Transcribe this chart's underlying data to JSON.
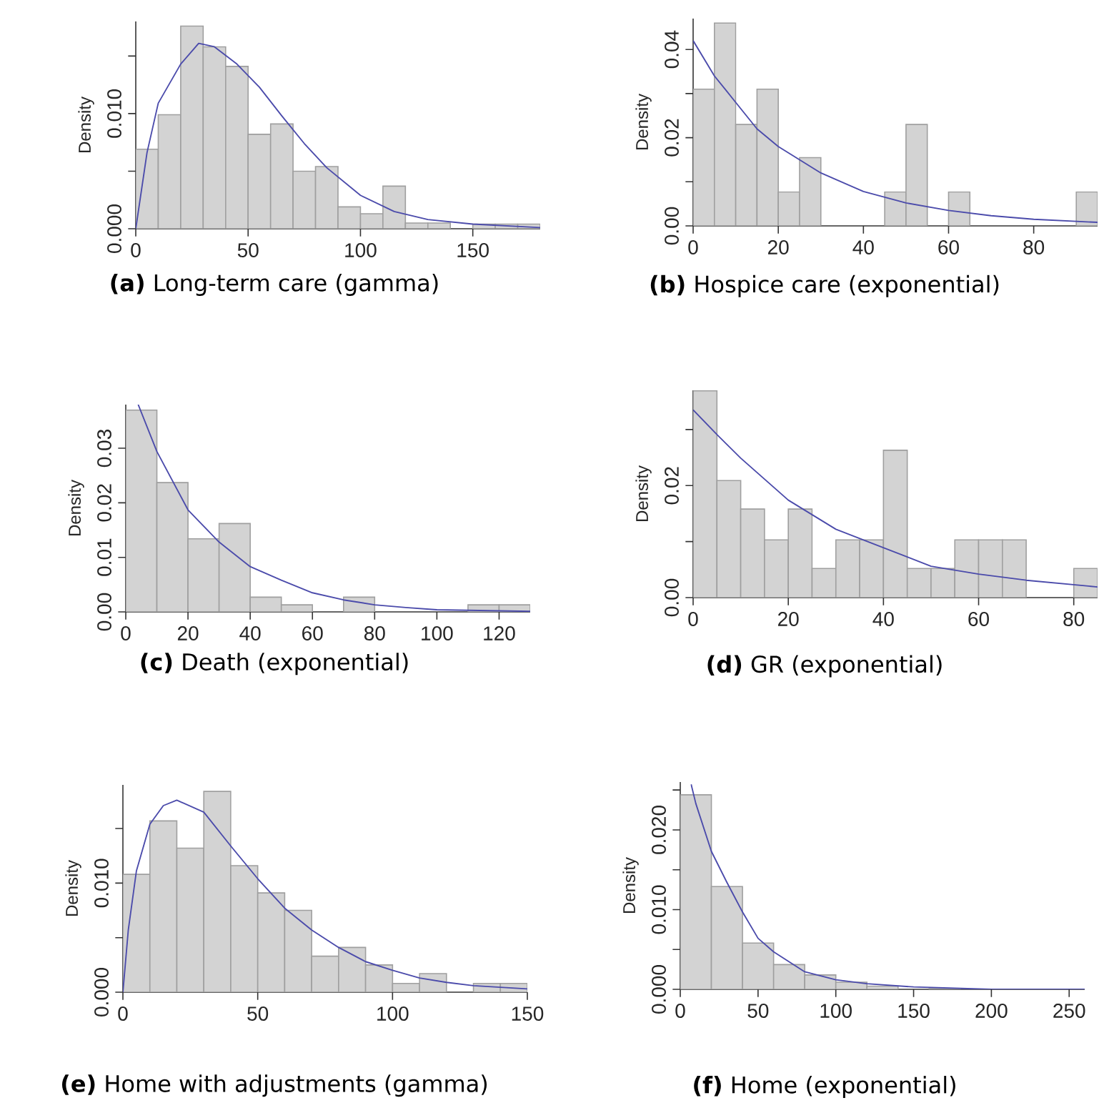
{
  "chart_data": [
    {
      "type": "histogram",
      "title": "**(a)** Long-term care (gamma)",
      "ylabel": "Density",
      "color": "#d3d3d3",
      "bins": [
        0,
        10,
        20,
        30,
        40,
        50,
        60,
        70,
        80,
        90,
        100,
        110,
        120,
        130,
        140,
        150,
        160,
        170,
        180
      ],
      "values": [
        0.0069,
        0.0099,
        0.0176,
        0.0158,
        0.0141,
        0.0082,
        0.0091,
        0.005,
        0.0054,
        0.0019,
        0.0013,
        0.0037,
        0.0005,
        0.0005,
        0,
        0.0004,
        0.0004,
        0.0004
      ],
      "series": [
        {
          "type": "line",
          "color": "#4b4bab",
          "x": [
            0,
            5,
            10,
            20,
            28,
            35,
            45,
            55,
            65,
            75,
            85,
            100,
            115,
            130,
            150,
            180
          ],
          "values": [
            0,
            0.0066,
            0.0109,
            0.0143,
            0.0161,
            0.0158,
            0.0143,
            0.0123,
            0.0098,
            0.0074,
            0.0053,
            0.0029,
            0.0015,
            0.0008,
            0.0004,
            0.0001
          ]
        }
      ],
      "xlim": [
        0,
        180
      ],
      "ylim": [
        0,
        0.018
      ],
      "xticks": [
        0,
        50,
        100,
        150
      ],
      "yticks": [
        {
          "value": 0,
          "label": "0.000"
        },
        {
          "value": 0.005,
          "label": null
        },
        {
          "value": 0.01,
          "label": "0.010"
        },
        {
          "value": 0.015,
          "label": null
        }
      ]
    },
    {
      "type": "histogram",
      "title": "**(b)** Hospice care (exponential)",
      "ylabel": "Density",
      "color": "#d3d3d3",
      "bins": [
        0,
        5,
        10,
        15,
        20,
        25,
        30,
        35,
        40,
        45,
        50,
        55,
        60,
        65,
        70,
        75,
        80,
        85,
        90,
        95
      ],
      "values": [
        0.031,
        0.046,
        0.023,
        0.031,
        0.0077,
        0.0155,
        0,
        0,
        0,
        0.0077,
        0.023,
        0,
        0.0077,
        0,
        0,
        0,
        0,
        0,
        0.0077
      ],
      "series": [
        {
          "type": "line",
          "color": "#4b4bab",
          "x": [
            0,
            5,
            10,
            15,
            20,
            25,
            30,
            40,
            50,
            60,
            70,
            80,
            95
          ],
          "values": [
            0.042,
            0.034,
            0.028,
            0.022,
            0.018,
            0.015,
            0.012,
            0.0078,
            0.0052,
            0.0035,
            0.0023,
            0.0015,
            0.0008
          ]
        }
      ],
      "xlim": [
        0,
        95
      ],
      "ylim": [
        0,
        0.047
      ],
      "xticks": [
        0,
        20,
        40,
        60,
        80
      ],
      "yticks": [
        {
          "value": 0,
          "label": "0.00"
        },
        {
          "value": 0.01,
          "label": null
        },
        {
          "value": 0.02,
          "label": "0.02"
        },
        {
          "value": 0.03,
          "label": null
        },
        {
          "value": 0.04,
          "label": "0.04"
        }
      ]
    },
    {
      "type": "histogram",
      "title": "**(c)** Death (exponential)",
      "ylabel": "Density",
      "color": "#d3d3d3",
      "bins": [
        0,
        10,
        20,
        30,
        40,
        50,
        60,
        70,
        80,
        90,
        100,
        110,
        120,
        130
      ],
      "values": [
        0.037,
        0.0237,
        0.0134,
        0.0162,
        0.0027,
        0.0013,
        0,
        0.0027,
        0,
        0,
        0,
        0.0013,
        0.0013
      ],
      "series": [
        {
          "type": "line",
          "color": "#4b4bab",
          "x": [
            4,
            10,
            20,
            30,
            40,
            50,
            60,
            70,
            80,
            90,
            100,
            130
          ],
          "values": [
            0.038,
            0.0294,
            0.0187,
            0.0128,
            0.0083,
            0.0058,
            0.0035,
            0.0022,
            0.0013,
            0.0008,
            0.0004,
            0.0001
          ]
        }
      ],
      "xlim": [
        0,
        130
      ],
      "ylim": [
        0,
        0.038
      ],
      "xticks": [
        0,
        20,
        40,
        60,
        80,
        100,
        120
      ],
      "yticks": [
        {
          "value": 0,
          "label": "0.00"
        },
        {
          "value": 0.01,
          "label": "0.01"
        },
        {
          "value": 0.02,
          "label": "0.02"
        },
        {
          "value": 0.03,
          "label": "0.03"
        }
      ]
    },
    {
      "type": "histogram",
      "title": "**(d)** GR (exponential)",
      "ylabel": "Density",
      "color": "#d3d3d3",
      "bins": [
        0,
        5,
        10,
        15,
        20,
        25,
        30,
        35,
        40,
        45,
        50,
        55,
        60,
        65,
        70,
        75,
        80,
        85
      ],
      "values": [
        0.0369,
        0.0209,
        0.0158,
        0.0103,
        0.0158,
        0.0052,
        0.0103,
        0.0103,
        0.0263,
        0.0052,
        0.0052,
        0.0103,
        0.0103,
        0.0103,
        0,
        0,
        0.0052
      ],
      "series": [
        {
          "type": "line",
          "color": "#4b4bab",
          "x": [
            0,
            5,
            10,
            20,
            30,
            40,
            50,
            60,
            70,
            85
          ],
          "values": [
            0.0335,
            0.0291,
            0.0249,
            0.0174,
            0.0122,
            0.0089,
            0.0056,
            0.0042,
            0.0031,
            0.0019
          ]
        }
      ],
      "xlim": [
        0,
        85
      ],
      "ylim": [
        0,
        0.037
      ],
      "xticks": [
        0,
        20,
        40,
        60,
        80
      ],
      "yticks": [
        {
          "value": 0,
          "label": "0.00"
        },
        {
          "value": 0.01,
          "label": null
        },
        {
          "value": 0.02,
          "label": "0.02"
        },
        {
          "value": 0.03,
          "label": null
        }
      ]
    },
    {
      "type": "histogram",
      "title": "**(e)** Home with adjustments (gamma)",
      "ylabel": "Density",
      "color": "#d3d3d3",
      "bins": [
        0,
        10,
        20,
        30,
        40,
        50,
        60,
        70,
        80,
        90,
        100,
        110,
        120,
        130,
        140,
        150
      ],
      "values": [
        0.0108,
        0.0157,
        0.0132,
        0.0184,
        0.0116,
        0.0091,
        0.0075,
        0.0033,
        0.0041,
        0.0025,
        0.0008,
        0.0017,
        0,
        0.0008,
        0.0008
      ],
      "series": [
        {
          "type": "line",
          "color": "#4b4bab",
          "x": [
            0,
            2,
            5,
            10,
            15,
            20,
            30,
            40,
            50,
            60,
            70,
            80,
            90,
            100,
            110,
            120,
            130,
            150
          ],
          "values": [
            0,
            0.0057,
            0.0111,
            0.0154,
            0.0171,
            0.0176,
            0.0165,
            0.0134,
            0.0104,
            0.0077,
            0.0057,
            0.0041,
            0.0028,
            0.002,
            0.0013,
            0.0009,
            0.0006,
            0.0003
          ]
        }
      ],
      "xlim": [
        0,
        150
      ],
      "ylim": [
        0,
        0.019
      ],
      "xticks": [
        0,
        50,
        100,
        150
      ],
      "yticks": [
        {
          "value": 0,
          "label": "0.000"
        },
        {
          "value": 0.005,
          "label": null
        },
        {
          "value": 0.01,
          "label": "0.010"
        },
        {
          "value": 0.015,
          "label": null
        }
      ]
    },
    {
      "type": "histogram",
      "title": "**(f)** Home (exponential)",
      "ylabel": "Density",
      "color": "#d3d3d3",
      "bins": [
        0,
        20,
        40,
        60,
        80,
        100,
        120,
        140,
        160,
        180,
        200,
        220,
        240,
        260
      ],
      "values": [
        0.0244,
        0.0129,
        0.0058,
        0.0031,
        0.0018,
        0.0009,
        0.0004,
        null,
        0.0001,
        0,
        0,
        0,
        0
      ],
      "series": [
        {
          "type": "line",
          "color": "#4b4bab",
          "x": [
            7,
            10,
            20,
            30,
            40,
            50,
            60,
            80,
            100,
            120,
            150,
            200,
            260
          ],
          "values": [
            0.0257,
            0.0233,
            0.0173,
            0.0134,
            0.0097,
            0.0064,
            0.0047,
            0.0022,
            0.0012,
            0.0007,
            0.0003,
            0,
            0
          ]
        }
      ],
      "xlim": [
        0,
        260
      ],
      "ylim": [
        0,
        0.026
      ],
      "xticks": [
        0,
        50,
        100,
        150,
        200,
        250
      ],
      "yticks": [
        {
          "value": 0,
          "label": "0.000"
        },
        {
          "value": 0.005,
          "label": null
        },
        {
          "value": 0.01,
          "label": "0.010"
        },
        {
          "value": 0.015,
          "label": null
        },
        {
          "value": 0.02,
          "label": "0.020"
        },
        {
          "value": 0.025,
          "label": null
        }
      ]
    }
  ]
}
